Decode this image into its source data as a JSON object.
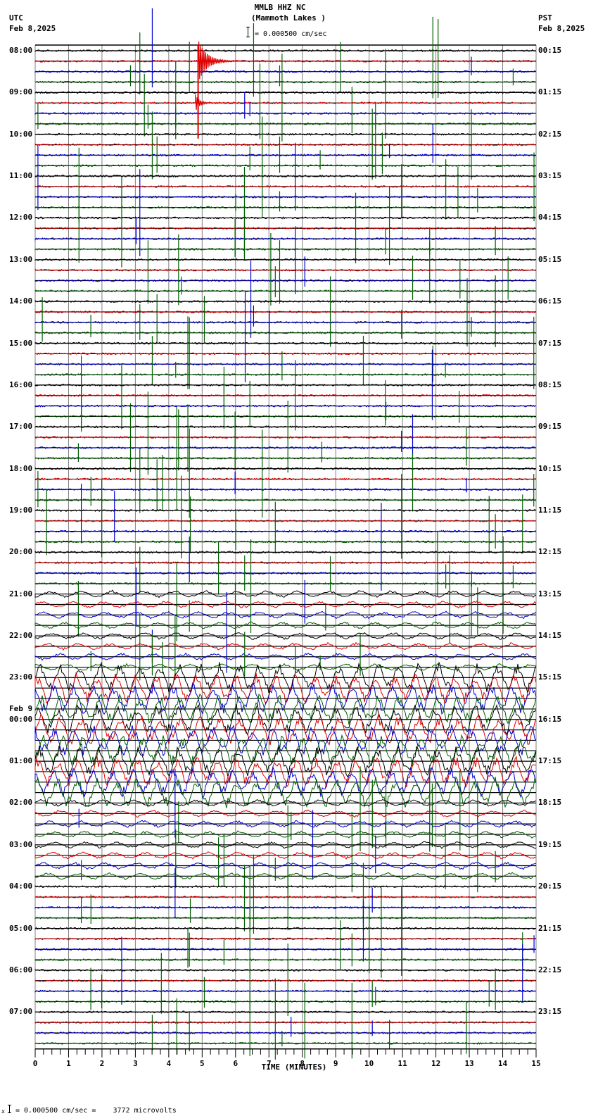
{
  "header": {
    "station": "MMLB HHZ NC",
    "location": "(Mammoth Lakes )",
    "scale_text": "= 0.000500 cm/sec",
    "left_tz": "UTC",
    "left_date": "Feb 8,2025",
    "right_tz": "PST",
    "right_date": "Feb 8,2025"
  },
  "footer": {
    "scale_prefix": "x",
    "scale_text": "= 0.000500 cm/sec =    3772 microvolts",
    "xlabel": "TIME (MINUTES)"
  },
  "colors": {
    "trace_cycle": [
      "#000000",
      "#e00000",
      "#0000d0",
      "#006000"
    ],
    "grid": "#808080",
    "background": "#ffffff"
  },
  "chart_data": {
    "type": "line",
    "title": "MMLB HHZ NC (Mammoth Lakes )",
    "subtitle": "1 div = 0.000500 cm/sec = 3772 microvolts",
    "xlabel": "TIME (MINUTES)",
    "ylabel": "",
    "xlim": [
      0,
      15
    ],
    "x_ticks": [
      "0",
      "1",
      "2",
      "3",
      "4",
      "5",
      "6",
      "7",
      "8",
      "9",
      "10",
      "11",
      "12",
      "13",
      "14",
      "15"
    ],
    "minor_ticks_per_minute": 4,
    "trace_minutes": 15,
    "trace_count": 96,
    "color_cycle": [
      "black",
      "red",
      "blue",
      "green"
    ],
    "left_axis_timezone": "UTC",
    "right_axis_timezone": "PST",
    "left_labels": [
      {
        "trace": 0,
        "label": "08:00"
      },
      {
        "trace": 4,
        "label": "09:00"
      },
      {
        "trace": 8,
        "label": "10:00"
      },
      {
        "trace": 12,
        "label": "11:00"
      },
      {
        "trace": 16,
        "label": "12:00"
      },
      {
        "trace": 20,
        "label": "13:00"
      },
      {
        "trace": 24,
        "label": "14:00"
      },
      {
        "trace": 28,
        "label": "15:00"
      },
      {
        "trace": 32,
        "label": "16:00"
      },
      {
        "trace": 36,
        "label": "17:00"
      },
      {
        "trace": 40,
        "label": "18:00"
      },
      {
        "trace": 44,
        "label": "19:00"
      },
      {
        "trace": 48,
        "label": "20:00"
      },
      {
        "trace": 52,
        "label": "21:00"
      },
      {
        "trace": 56,
        "label": "22:00"
      },
      {
        "trace": 60,
        "label": "23:00"
      },
      {
        "trace": 64,
        "label": "00:00",
        "date": "Feb 9"
      },
      {
        "trace": 68,
        "label": "01:00"
      },
      {
        "trace": 72,
        "label": "02:00"
      },
      {
        "trace": 76,
        "label": "03:00"
      },
      {
        "trace": 80,
        "label": "04:00"
      },
      {
        "trace": 84,
        "label": "05:00"
      },
      {
        "trace": 88,
        "label": "06:00"
      },
      {
        "trace": 92,
        "label": "07:00"
      }
    ],
    "right_labels": [
      {
        "trace": 0,
        "label": "00:15"
      },
      {
        "trace": 4,
        "label": "01:15"
      },
      {
        "trace": 8,
        "label": "02:15"
      },
      {
        "trace": 12,
        "label": "03:15"
      },
      {
        "trace": 16,
        "label": "04:15"
      },
      {
        "trace": 20,
        "label": "05:15"
      },
      {
        "trace": 24,
        "label": "06:15"
      },
      {
        "trace": 28,
        "label": "07:15"
      },
      {
        "trace": 32,
        "label": "08:15"
      },
      {
        "trace": 36,
        "label": "09:15"
      },
      {
        "trace": 40,
        "label": "10:15"
      },
      {
        "trace": 44,
        "label": "11:15"
      },
      {
        "trace": 48,
        "label": "12:15"
      },
      {
        "trace": 52,
        "label": "13:15"
      },
      {
        "trace": 56,
        "label": "14:15"
      },
      {
        "trace": 60,
        "label": "15:15"
      },
      {
        "trace": 64,
        "label": "16:15"
      },
      {
        "trace": 68,
        "label": "17:15"
      },
      {
        "trace": 72,
        "label": "18:15"
      },
      {
        "trace": 76,
        "label": "19:15"
      },
      {
        "trace": 80,
        "label": "20:15"
      },
      {
        "trace": 84,
        "label": "21:15"
      },
      {
        "trace": 88,
        "label": "22:15"
      },
      {
        "trace": 92,
        "label": "23:15"
      }
    ],
    "events": [
      {
        "trace": 1,
        "minute": 4.9,
        "amplitude": "large",
        "note": "earthquake signal, red trace ~08:15 UTC"
      },
      {
        "trace": 5,
        "minute": 4.8,
        "amplitude": "medium",
        "note": "second burst ~09:15 UTC"
      }
    ],
    "activity_bands": [
      {
        "from_trace": 0,
        "to_trace": 52,
        "level": "low",
        "note": "quiet background with sparse spikes"
      },
      {
        "from_trace": 52,
        "to_trace": 60,
        "level": "moderate"
      },
      {
        "from_trace": 60,
        "to_trace": 72,
        "level": "very high",
        "note": "dense high-amplitude oscillation ~23:00-02:00 UTC"
      },
      {
        "from_trace": 72,
        "to_trace": 80,
        "level": "moderate",
        "note": "long-period wave oscillations"
      },
      {
        "from_trace": 80,
        "to_trace": 96,
        "level": "low"
      }
    ]
  }
}
